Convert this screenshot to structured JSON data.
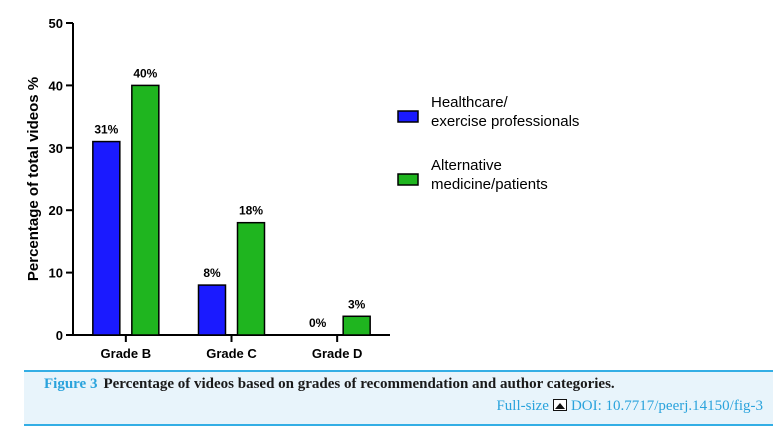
{
  "chart_data": {
    "type": "bar",
    "categories": [
      "Grade B",
      "Grade C",
      "Grade D"
    ],
    "series": [
      {
        "name": "Healthcare/\nexercise professionals",
        "values": [
          31,
          8,
          0
        ],
        "labels": [
          "31%",
          "8%",
          "0%"
        ],
        "color": "#1a1aff"
      },
      {
        "name": "Alternative\nmedicine/patients",
        "values": [
          40,
          18,
          3
        ],
        "labels": [
          "40%",
          "18%",
          "3%"
        ],
        "color": "#1fb51f"
      }
    ],
    "title": "",
    "xlabel": "",
    "ylabel": "Percentage of total videos %",
    "ylim": [
      0,
      50
    ],
    "yticks": [
      0,
      10,
      20,
      30,
      40,
      50
    ],
    "grid": false,
    "legend": "right"
  },
  "caption": {
    "figure_number": "Figure 3",
    "text": "Percentage of videos based on grades of recommendation and author categories.",
    "full_size_label": "Full-size",
    "doi_label": "DOI: 10.7717/peerj.14150/fig-3"
  }
}
